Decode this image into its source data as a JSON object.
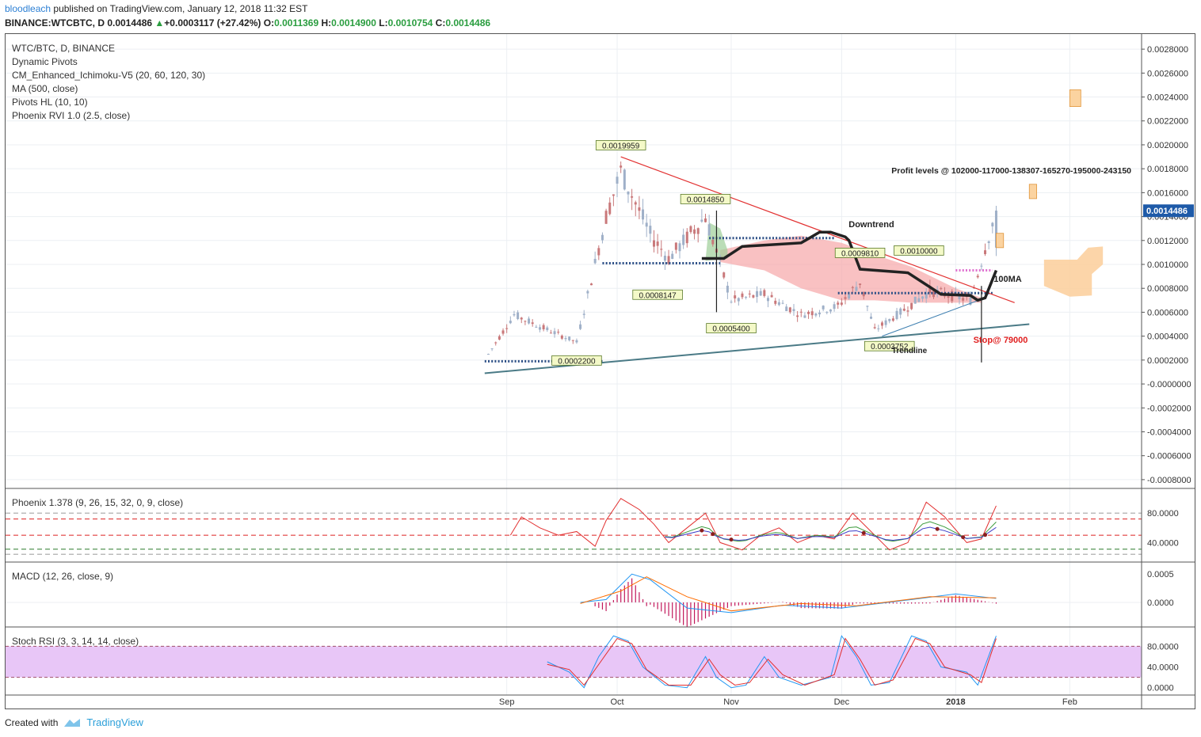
{
  "header": {
    "user": "bloodleach",
    "published": "published on TradingView.com, January 12, 2018 11:32 EST",
    "symbol": "BINANCE:WTCBTC, D",
    "last": "0.0014486",
    "change_arrow": "▲",
    "change": "+0.0003117 (+27.42%)",
    "o_label": "O:",
    "o": "0.0011369",
    "h_label": "H:",
    "h": "0.0014900",
    "l_label": "L:",
    "l": "0.0010754",
    "c_label": "C:",
    "c": "0.0014486"
  },
  "legend": [
    "WTC/BTC, D, BINANCE",
    "Dynamic Pivots",
    "CM_Enhanced_Ichimoku-V5 (20, 60, 120, 30)",
    "MA (500, close)",
    "Pivots HL (10, 10)",
    "Phoenix RVI 1.0 (2.5, close)"
  ],
  "colors": {
    "up": "#9fb0c8",
    "down": "#c9787a",
    "trendline_red": "#e23030",
    "support": "#4a7a86",
    "cloud": "#f6a6a8",
    "target_box": "#fbd3a0",
    "stoch_band": "#e8c6f7",
    "price_tag": "#1e5aa8"
  },
  "annotations": {
    "profit": "Profit levels @ 102000-117000-138307-165270-195000-243150",
    "downtrend": "Downtrend",
    "ma100": "100MA",
    "stop": "Stop@ 79000",
    "trendline": "Trendline"
  },
  "pivot_labels": [
    {
      "text": "0.0019959",
      "date": "2017-10-02",
      "price": 0.00199
    },
    {
      "text": "0.0014850",
      "date": "2017-10-25",
      "price": 0.00154
    },
    {
      "text": "0.0008147",
      "date": "2017-10-12",
      "price": 0.00074
    },
    {
      "text": "0.0005400",
      "date": "2017-11-01",
      "price": 0.00046
    },
    {
      "text": "0.0002200",
      "date": "2017-09-20",
      "price": 0.00019
    },
    {
      "text": "0.0009810",
      "date": "2017-12-06",
      "price": 0.00109
    },
    {
      "text": "0.0010000",
      "date": "2017-12-22",
      "price": 0.00111
    },
    {
      "text": "0.0003752",
      "date": "2017-12-14",
      "price": 0.00031
    }
  ],
  "footer": {
    "created": "Created with",
    "brand": "TradingView"
  },
  "chart_data": [
    {
      "type": "candlestick",
      "pane": "price",
      "title": "WTC/BTC, D, BINANCE",
      "ylim": [
        -0.0009,
        0.0029
      ],
      "yticks": [
        "0.0028000",
        "0.0026000",
        "0.0024000",
        "0.0022000",
        "0.0020000",
        "0.0018000",
        "0.0016000",
        "0.0014000",
        "0.0012000",
        "0.0010000",
        "0.0008000",
        "0.0006000",
        "0.0004000",
        "0.0002000",
        "-0.0000000",
        "-0.0002000",
        "-0.0004000",
        "-0.0006000",
        "-0.0008000"
      ],
      "xticks": [
        "Sep",
        "Oct",
        "Nov",
        "Dec",
        "2018",
        "Feb"
      ],
      "x_range": [
        "2017-08-17",
        "2018-02-11"
      ],
      "last_price": "0.0014486",
      "key_points": [
        {
          "date": "2017-08-27",
          "close": 0.00025
        },
        {
          "date": "2017-09-03",
          "close": 0.00058
        },
        {
          "date": "2017-09-10",
          "close": 0.00048
        },
        {
          "date": "2017-09-20",
          "close": 0.00035
        },
        {
          "date": "2017-09-28",
          "close": 0.0014
        },
        {
          "date": "2017-10-02",
          "close": 0.00178
        },
        {
          "date": "2017-10-10",
          "close": 0.00125
        },
        {
          "date": "2017-10-15",
          "close": 0.00105
        },
        {
          "date": "2017-10-25",
          "close": 0.0014
        },
        {
          "date": "2017-11-01",
          "close": 0.0007
        },
        {
          "date": "2017-11-10",
          "close": 0.00075
        },
        {
          "date": "2017-11-20",
          "close": 0.00058
        },
        {
          "date": "2017-11-30",
          "close": 0.00065
        },
        {
          "date": "2017-12-06",
          "close": 0.00085
        },
        {
          "date": "2017-12-10",
          "close": 0.00045
        },
        {
          "date": "2017-12-18",
          "close": 0.00062
        },
        {
          "date": "2017-12-25",
          "close": 0.00078
        },
        {
          "date": "2018-01-05",
          "close": 0.0007
        },
        {
          "date": "2018-01-09",
          "close": 0.00114
        },
        {
          "date": "2018-01-12",
          "close": 0.0014486
        }
      ],
      "downtrend_line": [
        {
          "date": "2017-10-02",
          "price": 0.0019
        },
        {
          "date": "2018-01-17",
          "price": 0.00068
        }
      ],
      "support_line": [
        {
          "date": "2017-08-26",
          "price": 9e-05
        },
        {
          "date": "2018-01-21",
          "price": 0.0005
        }
      ],
      "ma100": [
        {
          "date": "2017-10-24",
          "price": 0.00105
        },
        {
          "date": "2017-10-30",
          "price": 0.00105
        },
        {
          "date": "2017-11-04",
          "price": 0.00115
        },
        {
          "date": "2017-11-20",
          "price": 0.00118
        },
        {
          "date": "2017-11-25",
          "price": 0.00127
        },
        {
          "date": "2017-11-28",
          "price": 0.00127
        },
        {
          "date": "2017-12-02",
          "price": 0.00123
        },
        {
          "date": "2017-12-03",
          "price": 0.0012
        },
        {
          "date": "2017-12-06",
          "price": 0.00096
        },
        {
          "date": "2017-12-19",
          "price": 0.00093
        },
        {
          "date": "2017-12-28",
          "price": 0.00075
        },
        {
          "date": "2018-01-05",
          "price": 0.00074
        },
        {
          "date": "2018-01-07",
          "price": 0.0007
        },
        {
          "date": "2018-01-09",
          "price": 0.00072
        },
        {
          "date": "2018-01-12",
          "price": 0.00095
        }
      ],
      "dotted_levels": [
        {
          "from": "2017-08-26",
          "to": "2017-09-27",
          "price": 0.00019
        },
        {
          "from": "2017-09-27",
          "to": "2017-10-29",
          "price": 0.00101
        },
        {
          "from": "2017-10-26",
          "to": "2017-11-29",
          "price": 0.00122
        },
        {
          "from": "2017-11-30",
          "to": "2018-01-11",
          "price": 0.00076
        },
        {
          "from": "2018-01-01",
          "to": "2018-01-11",
          "price": 0.00095
        }
      ],
      "target_boxes": [
        {
          "date_from": "2018-02-01",
          "date_to": "2018-02-04",
          "low": 0.00232,
          "high": 0.00246
        },
        {
          "date_from": "2018-01-21",
          "date_to": "2018-01-23",
          "low": 0.00155,
          "high": 0.00167
        },
        {
          "date_from": "2018-01-12",
          "date_to": "2018-01-14",
          "low": 0.00114,
          "high": 0.00126
        }
      ]
    },
    {
      "type": "line",
      "pane": "phoenix",
      "title": "Phoenix 1.378 (9, 26, 15, 32, 0, 9, close)",
      "yticks": [
        "80.0000",
        "40.0000"
      ],
      "ylim": [
        20,
        105
      ],
      "levels": [
        80,
        72,
        50,
        31
      ],
      "series": [
        {
          "color": "#e23030",
          "values": [
            [
              "2017-09-02",
              50
            ],
            [
              "2017-09-05",
              75
            ],
            [
              "2017-09-10",
              60
            ],
            [
              "2017-09-15",
              50
            ],
            [
              "2017-09-20",
              55
            ],
            [
              "2017-09-25",
              35
            ],
            [
              "2017-09-28",
              70
            ],
            [
              "2017-10-02",
              100
            ],
            [
              "2017-10-07",
              85
            ],
            [
              "2017-10-11",
              65
            ],
            [
              "2017-10-15",
              40
            ],
            [
              "2017-10-20",
              60
            ],
            [
              "2017-10-25",
              80
            ],
            [
              "2017-10-29",
              40
            ],
            [
              "2017-11-04",
              30
            ],
            [
              "2017-11-09",
              50
            ],
            [
              "2017-11-14",
              60
            ],
            [
              "2017-11-19",
              40
            ],
            [
              "2017-11-24",
              50
            ],
            [
              "2017-11-29",
              45
            ],
            [
              "2017-12-04",
              80
            ],
            [
              "2017-12-09",
              55
            ],
            [
              "2017-12-14",
              30
            ],
            [
              "2017-12-19",
              40
            ],
            [
              "2017-12-24",
              95
            ],
            [
              "2017-12-29",
              75
            ],
            [
              "2018-01-04",
              40
            ],
            [
              "2018-01-08",
              45
            ],
            [
              "2018-01-12",
              90
            ]
          ]
        }
      ]
    },
    {
      "type": "line+histogram",
      "pane": "macd",
      "title": "MACD (12, 26, close, 9)",
      "yticks": [
        "0.0005",
        "0.0000"
      ],
      "ylim": [
        -0.00035,
        0.0006
      ],
      "series": [
        {
          "name": "",
          "color": "#2196f3",
          "values": [
            [
              "2017-09-21",
              0.0
            ],
            [
              "2017-09-28",
              5e-05
            ],
            [
              "2017-10-05",
              0.0005
            ],
            [
              "2017-10-10",
              0.0004
            ],
            [
              "2017-10-20",
              -0.0001
            ],
            [
              "2017-11-01",
              -0.00018
            ],
            [
              "2017-11-15",
              -5e-05
            ],
            [
              "2017-12-01",
              -0.0001
            ],
            [
              "2017-12-20",
              5e-05
            ],
            [
              "2018-01-01",
              0.00015
            ],
            [
              "2018-01-12",
              7e-05
            ]
          ]
        },
        {
          "name": "",
          "color": "#ff6d00",
          "values": [
            [
              "2017-09-21",
              -2e-05
            ],
            [
              "2017-10-02",
              0.0002
            ],
            [
              "2017-10-09",
              0.00045
            ],
            [
              "2017-10-20",
              0.0001
            ],
            [
              "2017-11-01",
              -0.00015
            ],
            [
              "2017-11-20",
              -2e-05
            ],
            [
              "2017-12-05",
              -6e-05
            ],
            [
              "2017-12-25",
              0.0001
            ],
            [
              "2018-01-12",
              8e-05
            ]
          ]
        }
      ]
    },
    {
      "type": "line",
      "pane": "stoch",
      "title": "Stoch RSI (3, 3, 14, 14, close)",
      "yticks": [
        "80.0000",
        "40.0000",
        "0.0000"
      ],
      "ylim": [
        -5,
        105
      ],
      "band": [
        20,
        80
      ],
      "series": [
        {
          "name": "",
          "color": "#2196f3",
          "values": [
            [
              "2017-09-12",
              50
            ],
            [
              "2017-09-18",
              30
            ],
            [
              "2017-09-22",
              0
            ],
            [
              "2017-09-26",
              60
            ],
            [
              "2017-09-30",
              100
            ],
            [
              "2017-10-04",
              90
            ],
            [
              "2017-10-08",
              40
            ],
            [
              "2017-10-14",
              5
            ],
            [
              "2017-10-20",
              0
            ],
            [
              "2017-10-25",
              60
            ],
            [
              "2017-10-28",
              20
            ],
            [
              "2017-11-01",
              0
            ],
            [
              "2017-11-05",
              5
            ],
            [
              "2017-11-10",
              60
            ],
            [
              "2017-11-14",
              20
            ],
            [
              "2017-11-20",
              5
            ],
            [
              "2017-11-28",
              20
            ],
            [
              "2017-12-01",
              100
            ],
            [
              "2017-12-05",
              60
            ],
            [
              "2017-12-09",
              5
            ],
            [
              "2017-12-14",
              10
            ],
            [
              "2017-12-20",
              100
            ],
            [
              "2017-12-24",
              90
            ],
            [
              "2017-12-28",
              40
            ],
            [
              "2018-01-04",
              30
            ],
            [
              "2018-01-07",
              5
            ],
            [
              "2018-01-12",
              100
            ]
          ]
        },
        {
          "name": "",
          "color": "#e23030",
          "values": [
            [
              "2017-09-12",
              45
            ],
            [
              "2017-09-18",
              35
            ],
            [
              "2017-09-22",
              5
            ],
            [
              "2017-09-27",
              55
            ],
            [
              "2017-10-01",
              95
            ],
            [
              "2017-10-05",
              85
            ],
            [
              "2017-10-09",
              35
            ],
            [
              "2017-10-15",
              5
            ],
            [
              "2017-10-21",
              5
            ],
            [
              "2017-10-26",
              55
            ],
            [
              "2017-10-29",
              25
            ],
            [
              "2017-11-02",
              5
            ],
            [
              "2017-11-06",
              10
            ],
            [
              "2017-11-11",
              55
            ],
            [
              "2017-11-15",
              25
            ],
            [
              "2017-11-21",
              5
            ],
            [
              "2017-11-29",
              25
            ],
            [
              "2017-12-02",
              95
            ],
            [
              "2017-12-06",
              55
            ],
            [
              "2017-12-10",
              5
            ],
            [
              "2017-12-15",
              15
            ],
            [
              "2017-12-21",
              95
            ],
            [
              "2017-12-25",
              85
            ],
            [
              "2017-12-29",
              40
            ],
            [
              "2018-01-05",
              25
            ],
            [
              "2018-01-08",
              10
            ],
            [
              "2018-01-12",
              95
            ]
          ]
        }
      ]
    }
  ]
}
